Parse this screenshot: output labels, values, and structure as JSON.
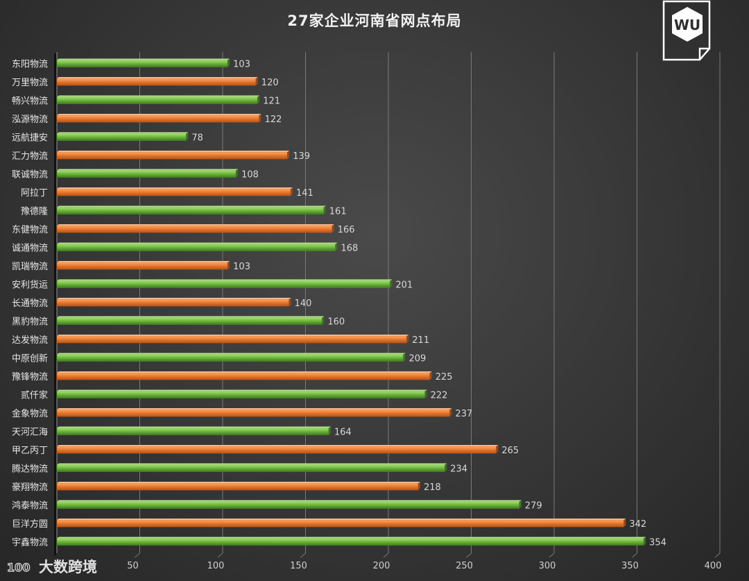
{
  "chart_data": {
    "type": "bar",
    "orientation": "horizontal",
    "title": "27家企业河南省网点布局",
    "xlabel": "",
    "ylabel": "",
    "xlim": [
      0,
      400
    ],
    "xticks": [
      50,
      100,
      150,
      200,
      250,
      300,
      350,
      400
    ],
    "grid": true,
    "categories": [
      "东阳物流",
      "万里物流",
      "畅兴物流",
      "泓源物流",
      "远航捷安",
      "汇力物流",
      "联诚物流",
      "阿拉丁",
      "豫德隆",
      "东健物流",
      "诚通物流",
      "凯瑞物流",
      "安利货运",
      "长通物流",
      "黑豹物流",
      "达发物流",
      "中原创新",
      "豫锋物流",
      "贰仟家",
      "金象物流",
      "天河汇海",
      "甲乙丙丁",
      "腾达物流",
      "豪翔物流",
      "鸿泰物流",
      "巨洋方圆",
      "宇鑫物流"
    ],
    "values": [
      103,
      120,
      121,
      122,
      78,
      139,
      108,
      141,
      161,
      166,
      168,
      103,
      201,
      140,
      160,
      211,
      209,
      225,
      222,
      237,
      164,
      265,
      234,
      218,
      279,
      342,
      354
    ],
    "colors": {
      "green": "#6cb33f",
      "orange": "#ed7d31"
    }
  },
  "logo": {
    "text": "WU",
    "icon": "wu-document-logo-icon"
  },
  "brand": {
    "text": "大数跨境",
    "mark": "100"
  }
}
